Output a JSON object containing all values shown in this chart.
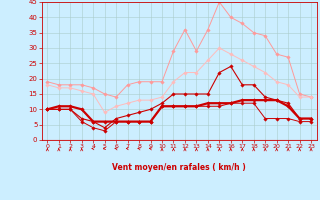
{
  "x": [
    0,
    1,
    2,
    3,
    4,
    5,
    6,
    7,
    8,
    9,
    10,
    11,
    12,
    13,
    14,
    15,
    16,
    17,
    18,
    19,
    20,
    21,
    22,
    23
  ],
  "series": [
    {
      "name": "rafales_max",
      "color": "#ff9999",
      "linewidth": 0.7,
      "marker": "D",
      "markersize": 1.8,
      "y": [
        19,
        18,
        18,
        18,
        17,
        15,
        14,
        18,
        19,
        19,
        19,
        29,
        36,
        29,
        36,
        45,
        40,
        38,
        35,
        34,
        28,
        27,
        15,
        14
      ]
    },
    {
      "name": "rafales_mean",
      "color": "#ffbbbb",
      "linewidth": 0.7,
      "marker": "D",
      "markersize": 1.8,
      "y": [
        18,
        17,
        17,
        16,
        15,
        9,
        11,
        12,
        13,
        13,
        14,
        19,
        22,
        22,
        26,
        30,
        28,
        26,
        24,
        22,
        19,
        18,
        14,
        14
      ]
    },
    {
      "name": "vent_max",
      "color": "#cc0000",
      "linewidth": 0.8,
      "marker": "D",
      "markersize": 1.8,
      "y": [
        10,
        10,
        10,
        7,
        6,
        4,
        7,
        8,
        9,
        10,
        12,
        15,
        15,
        15,
        15,
        22,
        24,
        18,
        18,
        14,
        13,
        12,
        7,
        7
      ]
    },
    {
      "name": "vent_mean",
      "color": "#cc0000",
      "linewidth": 1.6,
      "marker": "D",
      "markersize": 1.8,
      "y": [
        10,
        11,
        11,
        10,
        6,
        6,
        6,
        6,
        6,
        6,
        11,
        11,
        11,
        11,
        12,
        12,
        12,
        13,
        13,
        13,
        13,
        11,
        7,
        7
      ]
    },
    {
      "name": "vent_min",
      "color": "#cc0000",
      "linewidth": 0.7,
      "marker": "D",
      "markersize": 1.8,
      "y": [
        10,
        10,
        10,
        6,
        4,
        3,
        6,
        6,
        6,
        6,
        11,
        11,
        11,
        11,
        11,
        11,
        12,
        12,
        12,
        7,
        7,
        7,
        6,
        6
      ]
    }
  ],
  "xlabel": "Vent moyen/en rafales ( km/h )",
  "xlim": [
    -0.5,
    23.5
  ],
  "ylim": [
    0,
    45
  ],
  "yticks": [
    0,
    5,
    10,
    15,
    20,
    25,
    30,
    35,
    40,
    45
  ],
  "xticks": [
    0,
    1,
    2,
    3,
    4,
    5,
    6,
    7,
    8,
    9,
    10,
    11,
    12,
    13,
    14,
    15,
    16,
    17,
    18,
    19,
    20,
    21,
    22,
    23
  ],
  "background_color": "#cceeff",
  "grid_color": "#aacccc",
  "tick_color": "#cc0000",
  "label_color": "#cc0000",
  "arrow_angles_deg": [
    90,
    90,
    90,
    90,
    150,
    210,
    135,
    150,
    135,
    135,
    90,
    90,
    90,
    90,
    90,
    90,
    90,
    90,
    90,
    90,
    90,
    90,
    90,
    90
  ]
}
